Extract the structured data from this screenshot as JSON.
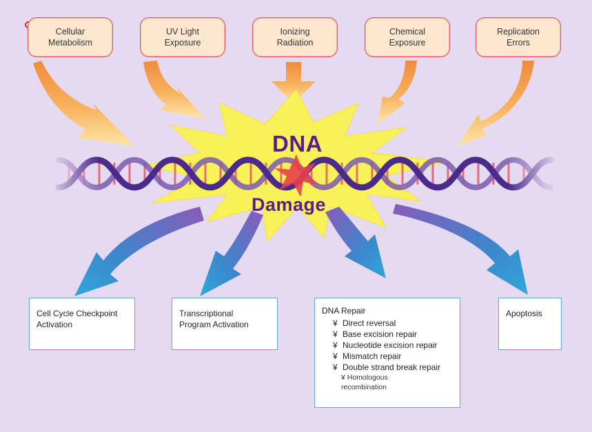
{
  "causes": [
    "Cellular\nMetabolism",
    "UV Light\nExposure",
    "Ionizing\nRadiation",
    "Chemical\nExposure",
    "Replication\nErrors"
  ],
  "center": {
    "word1": "DNA",
    "word2": "Damage"
  },
  "outcomes": {
    "checkpoint": "Cell Cycle Checkpoint\nActivation",
    "transcription": "Transcriptional\nProgram Activation",
    "repair": {
      "title": "DNA Repair",
      "bullet": "¥",
      "items": [
        "Direct reversal",
        "Base excision repair",
        "Nucleotide excision repair",
        "Mismatch repair",
        "Double strand break repair"
      ],
      "sub_item": "Homologous\nrecombination"
    },
    "apoptosis": "Apoptosis"
  },
  "colors": {
    "background": "#e6daf0",
    "cause_fill": "#fde8cf",
    "cause_border": "#e0566a",
    "orange_arrow": "#f59a50",
    "burst": "#f8f15a",
    "helix_strand": "#4a2a8a",
    "helix_base": "#e4586a",
    "blue_arrow": "#2f9fd0",
    "text_purple": "#5a1d8a"
  }
}
